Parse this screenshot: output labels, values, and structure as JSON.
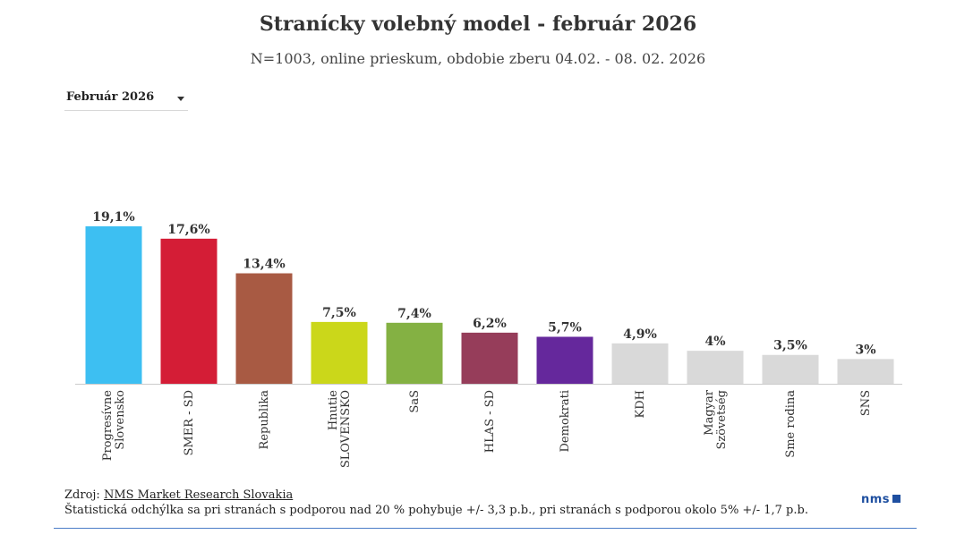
{
  "header": {
    "title": "Stranícky volebný model - február 2026",
    "subtitle": "N=1003, online prieskum, obdobie zberu 04.02. - 08. 02. 2026"
  },
  "filter": {
    "selected": "Február 2026"
  },
  "chart_data": {
    "type": "bar",
    "title": "Stranícky volebný model - február 2026",
    "subtitle": "N=1003, online prieskum, obdobie zberu 04.02. - 08. 02. 2026",
    "xlabel": "",
    "ylabel": "",
    "ylim": [
      0,
      20
    ],
    "grid": false,
    "legend": "none",
    "categories": [
      "Progresívne\nSlovensko",
      "SMER - SD",
      "Republika",
      "Hnutie\nSLOVENSKO",
      "SaS",
      "HLAS - SD",
      "Demokrati",
      "KDH",
      "Magyar\nSzövetség",
      "Sme rodina",
      "SNS"
    ],
    "values": [
      19.1,
      17.6,
      13.4,
      7.5,
      7.4,
      6.2,
      5.7,
      4.9,
      4.0,
      3.5,
      3.0
    ],
    "labels": [
      "19,1%",
      "17,6%",
      "13,4%",
      "7,5%",
      "7,4%",
      "6,2%",
      "5,7%",
      "4,9%",
      "4%",
      "3,5%",
      "3%"
    ],
    "colors": [
      "#3dbff2",
      "#d41d36",
      "#a85a43",
      "#cbd71a",
      "#84b143",
      "#963d5a",
      "#65289c",
      "#d9d9d9",
      "#d9d9d9",
      "#d9d9d9",
      "#d9d9d9"
    ]
  },
  "footer": {
    "source_prefix": "Zdroj: ",
    "source_link": "NMS Market Research Slovakia",
    "note": "Štatistická odchýlka sa pri stranách s podporou nad 20 % pohybuje +/- 3,3 p.b., pri stranách s podporou okolo 5% +/- 1,7 p.b.",
    "logo_text": "nms"
  }
}
